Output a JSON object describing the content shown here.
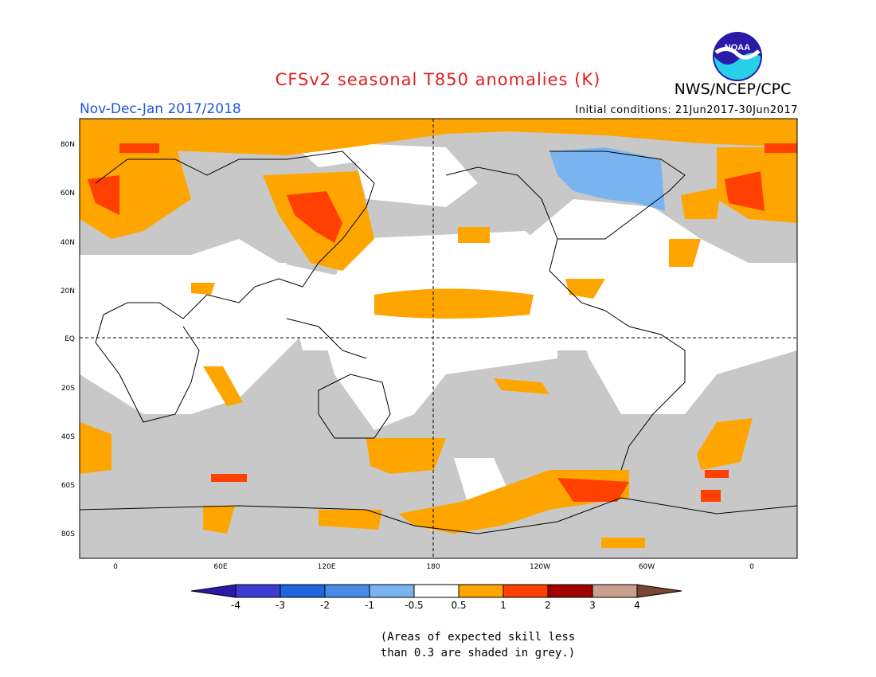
{
  "header": {
    "title": "CFSv2 seasonal T850 anomalies (K)",
    "title_color": "#e02020",
    "agency": "NWS/NCEP/CPC",
    "period": "Nov-Dec-Jan 2017/2018",
    "period_color": "#2255dd",
    "initial_conditions": "Initial conditions: 21Jun2017-30Jun2017"
  },
  "logo": {
    "text": "NOAA",
    "icon": "noaa-logo"
  },
  "map": {
    "type": "global-anomaly-map",
    "projection": "cylindrical equidistant",
    "lon_range": [
      -20,
      380
    ],
    "lat_range": [
      -90,
      90
    ],
    "lat_labels": [
      "80N",
      "60N",
      "40N",
      "20N",
      "EQ",
      "20S",
      "40S",
      "60S",
      "80S"
    ],
    "lon_labels": [
      "0",
      "60E",
      "120E",
      "180",
      "120W",
      "60W",
      "0"
    ],
    "no_skill_color": "#c8c8c8",
    "regions": [
      {
        "name": "arctic-warm",
        "class": "0.5-1",
        "color": "#ffa500"
      },
      {
        "name": "scandinavia-warm",
        "class": "1-2",
        "color": "#ff4000"
      },
      {
        "name": "east-asia-warm",
        "class": "1-2",
        "color": "#ff4000"
      },
      {
        "name": "tropical-pacific-warm",
        "class": "0.5-1",
        "color": "#ffa500"
      },
      {
        "name": "canada-cool",
        "class": "-1 to -0.5",
        "color": "#7ab4f0"
      },
      {
        "name": "south-pacific-warm",
        "class": "1-2",
        "color": "#ff4000"
      },
      {
        "name": "south-atlantic-warm",
        "class": "0.5-1",
        "color": "#ffa500"
      }
    ]
  },
  "colorbar": {
    "labels": [
      "-4",
      "-3",
      "-2",
      "-1",
      "-0.5",
      "0.5",
      "1",
      "2",
      "3",
      "4"
    ],
    "colors": [
      "#2a1aa8",
      "#3c3cd2",
      "#1e64dc",
      "#468ce6",
      "#78b4f0",
      "#ffffff",
      "#ffa500",
      "#ff4000",
      "#a00000",
      "#c8a08c",
      "#784632"
    ]
  },
  "note": {
    "line1": "(Areas of expected skill less",
    "line2": "than 0.3 are shaded in grey.)"
  }
}
